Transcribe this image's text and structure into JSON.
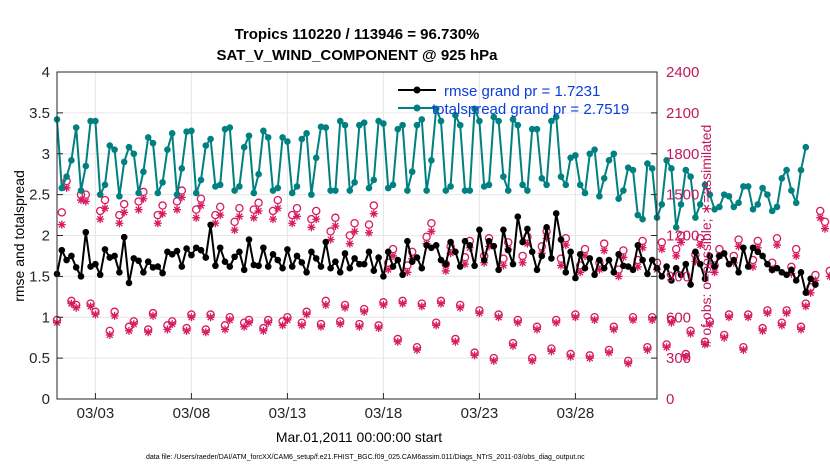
{
  "chart_data": {
    "type": "line",
    "title": "Tropics 110220 / 113946 = 96.730%",
    "subtitle": "SAT_V_WIND_COMPONENT @ 925 hPa",
    "xlabel": "Mar.01,2011 00:00:00 start",
    "ylabel_left": "rmse and totalspread",
    "ylabel_right": "# of obs: o=possible; ∗=assimilated",
    "xlim": [
      1.0,
      32.25
    ],
    "ylim_left": [
      0,
      4
    ],
    "ylim_right": [
      0,
      2400
    ],
    "x_ticks": [
      3,
      8,
      13,
      18,
      23,
      28
    ],
    "x_tick_labels": [
      "03/03",
      "03/08",
      "03/13",
      "03/18",
      "03/23",
      "03/28"
    ],
    "y_ticks_left": [
      0,
      0.5,
      1,
      1.5,
      2,
      2.5,
      3,
      3.5,
      4
    ],
    "y_tick_labels_left": [
      "0",
      "0.5",
      "1",
      "1.5",
      "2",
      "2.5",
      "3",
      "3.5",
      "4"
    ],
    "y_ticks_right": [
      0,
      300,
      600,
      900,
      1200,
      1500,
      1800,
      2100,
      2400
    ],
    "y_tick_labels_right": [
      "0",
      "300",
      "600",
      "900",
      "1200",
      "1500",
      "1800",
      "2100",
      "2400"
    ],
    "grid": true,
    "legend": {
      "placement": "top-right",
      "entries": [
        "rmse grand pr = 1.7231",
        "totalspread grand pr = 2.7519"
      ]
    },
    "colors": {
      "rmse": "#000000",
      "totalspread": "#008080",
      "obs": "#d81b60",
      "legend_text": "#0a3de0"
    },
    "series": [
      {
        "name": "rmse",
        "axis": "left",
        "marker": "filled-circle",
        "x_start": 1.0,
        "x_step": 0.25,
        "values": [
          1.53,
          1.82,
          1.7,
          1.75,
          1.61,
          1.5,
          2.04,
          1.62,
          1.65,
          1.52,
          1.83,
          1.73,
          1.75,
          1.55,
          1.98,
          1.42,
          1.72,
          1.69,
          1.55,
          1.68,
          1.61,
          1.62,
          1.54,
          1.8,
          1.77,
          1.81,
          1.62,
          1.84,
          1.76,
          1.85,
          1.82,
          1.73,
          2.13,
          1.63,
          1.85,
          1.68,
          1.62,
          1.74,
          1.8,
          1.58,
          1.95,
          1.64,
          1.63,
          1.85,
          1.62,
          1.77,
          1.7,
          1.6,
          1.83,
          1.62,
          1.75,
          1.67,
          1.55,
          1.8,
          1.72,
          1.62,
          1.92,
          1.6,
          1.68,
          1.55,
          1.78,
          1.6,
          1.72,
          1.65,
          1.65,
          1.8,
          1.57,
          1.73,
          1.5,
          1.8,
          1.62,
          1.7,
          1.52,
          1.93,
          1.68,
          1.73,
          1.6,
          1.88,
          1.85,
          1.88,
          1.7,
          1.65,
          1.92,
          1.8,
          1.62,
          1.93,
          1.88,
          1.63,
          2.07,
          1.7,
          1.93,
          1.87,
          1.58,
          2.07,
          1.82,
          1.65,
          2.23,
          1.92,
          2.08,
          1.8,
          1.58,
          1.75,
          2.1,
          1.72,
          2.27,
          1.95,
          1.55,
          1.8,
          1.48,
          1.77,
          1.6,
          1.72,
          1.52,
          1.7,
          1.6,
          1.7,
          1.55,
          1.77,
          1.63,
          1.62,
          1.58,
          1.88,
          1.7,
          1.53,
          1.7,
          1.6,
          1.5,
          1.62,
          1.45,
          1.6,
          1.52,
          1.65,
          1.4,
          1.8,
          1.65,
          1.47,
          1.75,
          1.62,
          1.75,
          1.78,
          1.65,
          1.7,
          1.55,
          1.85,
          1.62,
          1.85,
          1.8,
          1.75,
          1.65,
          1.58,
          1.6,
          1.55,
          1.52,
          1.58,
          1.45,
          1.55,
          1.3,
          1.47,
          1.4
        ]
      },
      {
        "name": "totalspread",
        "axis": "left",
        "marker": "filled-circle",
        "x_start": 1.0,
        "x_step": 0.25,
        "values": [
          3.42,
          2.58,
          2.72,
          2.92,
          3.32,
          2.55,
          2.85,
          3.4,
          3.4,
          2.5,
          2.62,
          3.1,
          3.05,
          2.48,
          2.9,
          3.08,
          3.0,
          2.52,
          2.78,
          3.2,
          3.13,
          2.52,
          2.65,
          3.05,
          3.25,
          2.5,
          2.82,
          3.27,
          3.28,
          2.52,
          2.68,
          3.1,
          3.18,
          2.6,
          2.62,
          3.3,
          3.32,
          2.55,
          2.6,
          3.08,
          3.22,
          2.52,
          2.75,
          3.28,
          3.2,
          2.55,
          2.58,
          3.2,
          3.15,
          2.52,
          2.6,
          3.18,
          3.25,
          2.5,
          2.95,
          3.33,
          3.32,
          2.55,
          2.55,
          3.4,
          3.35,
          2.55,
          2.65,
          3.35,
          3.38,
          2.58,
          2.68,
          3.4,
          3.37,
          2.58,
          2.62,
          3.3,
          3.35,
          2.55,
          2.78,
          3.35,
          3.42,
          2.55,
          2.92,
          3.55,
          3.4,
          2.55,
          2.6,
          3.47,
          3.35,
          2.55,
          2.55,
          3.55,
          3.4,
          2.6,
          2.62,
          3.45,
          3.4,
          2.72,
          2.55,
          3.42,
          3.35,
          2.62,
          2.55,
          3.3,
          3.3,
          2.7,
          2.62,
          3.4,
          3.45,
          2.72,
          2.62,
          2.95,
          2.98,
          2.62,
          2.52,
          3.0,
          3.05,
          2.48,
          2.7,
          2.92,
          3.0,
          2.45,
          2.55,
          2.83,
          2.8,
          2.25,
          2.2,
          2.88,
          2.82,
          2.22,
          2.38,
          2.92,
          2.82,
          2.1,
          2.38,
          2.8,
          2.72,
          2.22,
          2.38,
          2.62,
          2.5,
          2.32,
          2.35,
          2.5,
          2.48,
          2.35,
          2.4,
          2.6,
          2.6,
          2.32,
          2.38,
          2.58,
          2.5,
          2.3,
          2.35,
          2.7,
          2.8,
          2.55,
          2.4,
          2.8,
          3.08
        ]
      },
      {
        "name": "obs possible",
        "axis": "right",
        "marker": "open-circle",
        "x_start": 1.0,
        "x_step": 0.25,
        "values": [
          580,
          1370,
          1600,
          720,
          690,
          1500,
          1500,
          700,
          640,
          1380,
          1460,
          500,
          640,
          1350,
          1430,
          530,
          570,
          1450,
          1520,
          510,
          630,
          1350,
          1420,
          540,
          570,
          1450,
          1530,
          520,
          620,
          1390,
          1470,
          510,
          620,
          1350,
          1410,
          540,
          600,
          1300,
          1400,
          560,
          580,
          1390,
          1440,
          520,
          580,
          1380,
          1460,
          570,
          600,
          1350,
          1400,
          560,
          640,
          1320,
          1380,
          550,
          720,
          1230,
          1330,
          570,
          690,
          1200,
          1290,
          550,
          660,
          1280,
          1420,
          540,
          710,
          1000,
          1100,
          440,
          720,
          980,
          1080,
          380,
          700,
          1190,
          1290,
          560,
          720,
          990,
          1120,
          440,
          690,
          1040,
          1160,
          340,
          650,
          1050,
          1180,
          300,
          620,
          1030,
          1150,
          410,
          580,
          1050,
          1190,
          300,
          530,
          1120,
          1230,
          370,
          580,
          1030,
          1180,
          330,
          620,
          980,
          1100,
          320,
          600,
          1000,
          1140,
          360,
          530,
          950,
          1090,
          280,
          600,
          1020,
          1160,
          380,
          600,
          1000,
          1150,
          400,
          580,
          1100,
          1200,
          330,
          500,
          1060,
          1180,
          420,
          570,
          980,
          1100,
          470,
          620,
          1050,
          1170,
          380,
          620,
          1020,
          1160,
          520,
          650,
          1000,
          1180,
          560,
          650,
          970,
          1100,
          530,
          700,
          820,
          910,
          1380,
          1300,
          940,
          1450,
          1680,
          0
        ]
      },
      {
        "name": "obs assimilated",
        "axis": "right",
        "marker": "asterisk",
        "x_start": 1.0,
        "x_step": 0.25,
        "values": [
          560,
          1280,
          1550,
          700,
          670,
          1460,
          1450,
          680,
          620,
          1320,
          1400,
          470,
          610,
          1290,
          1370,
          500,
          550,
          1390,
          1470,
          490,
          610,
          1290,
          1360,
          510,
          550,
          1390,
          1480,
          500,
          600,
          1330,
          1420,
          490,
          600,
          1290,
          1350,
          510,
          580,
          1240,
          1340,
          530,
          560,
          1330,
          1380,
          500,
          560,
          1320,
          1400,
          540,
          580,
          1290,
          1340,
          540,
          620,
          1260,
          1320,
          530,
          690,
          1170,
          1270,
          550,
          670,
          1140,
          1230,
          530,
          640,
          1220,
          1360,
          520,
          690,
          950,
          1050,
          420,
          700,
          930,
          1030,
          360,
          680,
          1140,
          1230,
          540,
          700,
          940,
          1070,
          420,
          670,
          990,
          1110,
          320,
          630,
          1000,
          1120,
          280,
          600,
          980,
          1100,
          390,
          560,
          1000,
          1140,
          280,
          510,
          1070,
          1180,
          350,
          560,
          980,
          1130,
          310,
          600,
          930,
          1050,
          300,
          580,
          950,
          1090,
          340,
          510,
          900,
          1040,
          260,
          580,
          970,
          1110,
          360,
          580,
          950,
          1100,
          380,
          560,
          1050,
          1150,
          310,
          480,
          1010,
          1130,
          400,
          550,
          930,
          1050,
          450,
          600,
          1000,
          1120,
          360,
          600,
          970,
          1110,
          500,
          630,
          950,
          1130,
          540,
          630,
          920,
          1050,
          510,
          680,
          780,
          870,
          1330,
          1250,
          900,
          1400,
          1620,
          0
        ]
      }
    ],
    "footnote": "data file: /Users/raeder/DAI/ATM_forcXX/CAM6_setup/f.e21.FHIST_BGC.f09_025.CAM6assim.011/Diags_NTrS_2011-03/obs_diag_output.nc"
  }
}
